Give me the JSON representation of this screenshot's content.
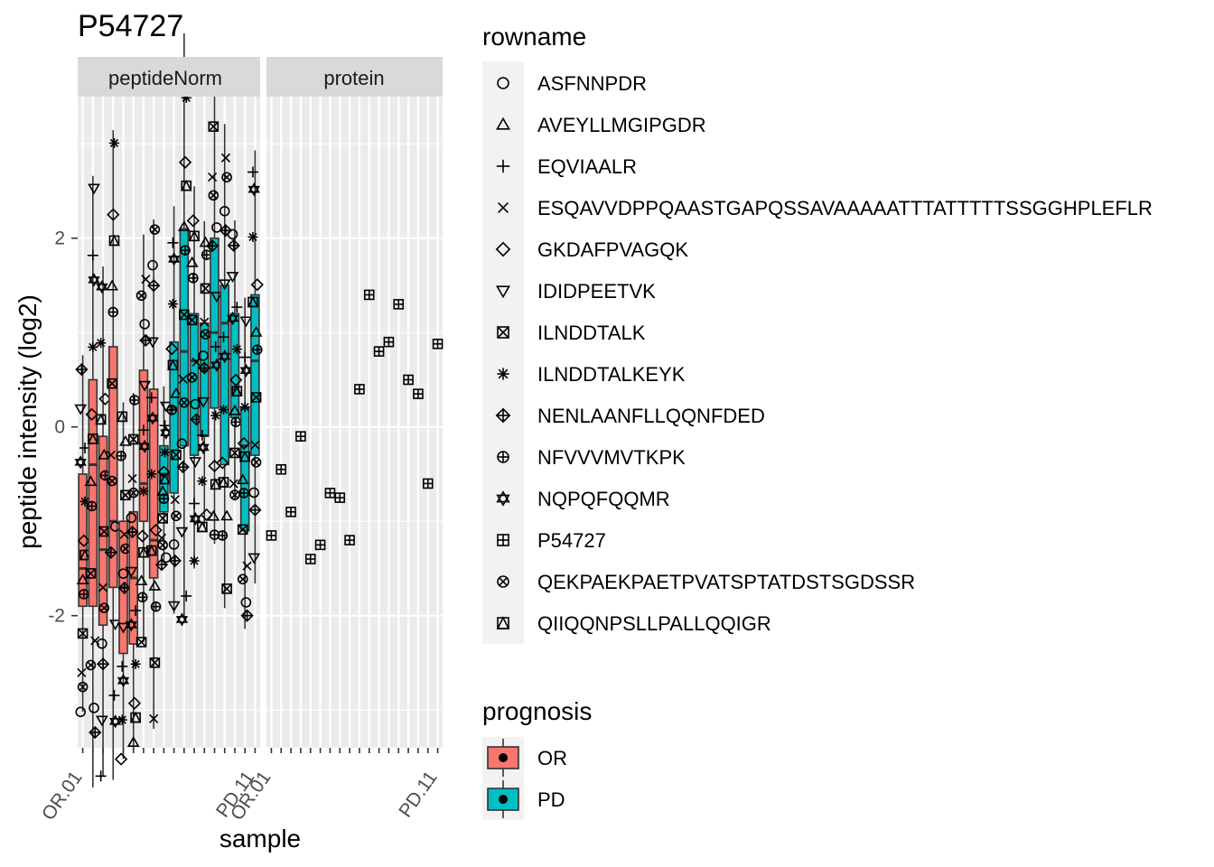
{
  "chart_data": {
    "type": "boxplot",
    "title": "P54727",
    "xlabel": "sample",
    "ylabel": "peptide intensity (log2)",
    "y_ticks": [
      -2,
      0,
      2
    ],
    "ylim": [
      -3.4,
      3.5
    ],
    "grid": true,
    "legend_placement": "right",
    "facets": [
      "peptideNorm",
      "protein"
    ],
    "n_samples": 18,
    "samples_note_hidden": "x tick labels are overlapping and illegible; only fragments like OR.01 and PD.11 are readable",
    "x_tick_labels_visible": [
      "OR.01",
      "",
      "",
      "",
      "",
      "",
      "",
      "",
      "",
      "",
      "",
      "",
      "",
      "",
      "",
      "",
      "",
      "PD.11"
    ],
    "sample_prognosis": [
      "OR",
      "OR",
      "OR",
      "OR",
      "OR",
      "OR",
      "OR",
      "OR",
      "PD",
      "PD",
      "PD",
      "PD",
      "PD",
      "PD",
      "PD",
      "PD",
      "PD",
      "PD"
    ],
    "boxes": [
      {
        "q1": -1.9,
        "med": -1.5,
        "q3": -0.5
      },
      {
        "q1": -1.9,
        "med": -0.4,
        "q3": 0.5
      },
      {
        "q1": -2.1,
        "med": -1.3,
        "q3": -0.1
      },
      {
        "q1": -1.7,
        "med": -1.0,
        "q3": 0.85
      },
      {
        "q1": -2.4,
        "med": -1.7,
        "q3": -1.0
      },
      {
        "q1": -2.3,
        "med": -1.6,
        "q3": -0.9
      },
      {
        "q1": -1.0,
        "med": -0.6,
        "q3": 0.6
      },
      {
        "q1": -1.6,
        "med": -1.2,
        "q3": 0.4
      },
      {
        "q1": -0.9,
        "med": -0.5,
        "q3": -0.2
      },
      {
        "q1": -0.7,
        "med": 0.2,
        "q3": 0.9
      },
      {
        "q1": -0.2,
        "med": 0.8,
        "q3": 2.1
      },
      {
        "q1": -0.3,
        "med": 0.7,
        "q3": 1.2
      },
      {
        "q1": -0.1,
        "med": 0.6,
        "q3": 1.1
      },
      {
        "q1": 0.2,
        "med": 1.0,
        "q3": 2.0
      },
      {
        "q1": -0.4,
        "med": 1.1,
        "q3": 1.5
      },
      {
        "q1": 0.1,
        "med": 0.4,
        "q3": 1.2
      },
      {
        "q1": -1.1,
        "med": -0.2,
        "q3": 0.2
      },
      {
        "q1": -0.3,
        "med": 0.7,
        "q3": 1.4
      }
    ],
    "protein_values": [
      -1.15,
      -0.45,
      -0.9,
      -0.1,
      -1.4,
      -1.25,
      -0.7,
      -0.75,
      -1.2,
      0.4,
      1.4,
      0.8,
      0.9,
      1.3,
      0.5,
      0.35,
      -0.6,
      0.88
    ],
    "legend_rowname": {
      "title": "rowname",
      "entries": [
        {
          "label": "ASFNNPDR",
          "shape": "circle"
        },
        {
          "label": "AVEYLLMGIPGDR",
          "shape": "triangle"
        },
        {
          "label": "EQVIAALR",
          "shape": "plus"
        },
        {
          "label": "ESQAVVDPPQAASTGAPQSSAVAAAAATTTATTTTTSSGGHPLEFLR",
          "shape": "cross"
        },
        {
          "label": "GKDAFPVAGQK",
          "shape": "diamond"
        },
        {
          "label": "IDIDPEETVK",
          "shape": "triangle-down"
        },
        {
          "label": "ILNDDTALK",
          "shape": "square-cross"
        },
        {
          "label": "ILNDDTALKEYK",
          "shape": "asterisk"
        },
        {
          "label": "NENLAANFLLQQNFDED",
          "shape": "diamond-plus"
        },
        {
          "label": "NFVVVMVTKPK",
          "shape": "circle-plus"
        },
        {
          "label": "NQPQFQQMR",
          "shape": "star-of-david"
        },
        {
          "label": "P54727",
          "shape": "square-plus"
        },
        {
          "label": "QEKPAEKPAETPVATSPTATDSTSGDSSR",
          "shape": "circle-cross"
        },
        {
          "label": "QIIQQNPSLLPALLQQIGR",
          "shape": "square-triangle"
        }
      ]
    },
    "legend_prognosis": {
      "title": "prognosis",
      "entries": [
        {
          "label": "OR",
          "color": "#F8766D"
        },
        {
          "label": "PD",
          "color": "#00BFC4"
        }
      ]
    }
  }
}
